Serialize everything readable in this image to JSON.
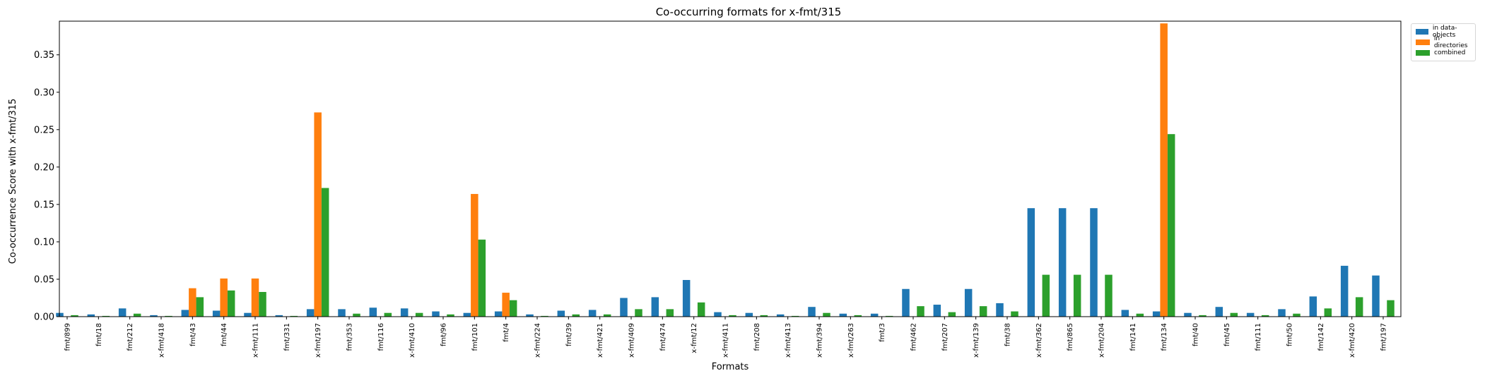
{
  "chart_data": {
    "type": "bar",
    "title": "Co-occurring formats for x-fmt/315",
    "xlabel": "Formats",
    "ylabel": "Co-occurrence Score with x-fmt/315",
    "ylim": [
      0,
      0.395
    ],
    "yticks": [
      0.0,
      0.05,
      0.1,
      0.15,
      0.2,
      0.25,
      0.3,
      0.35
    ],
    "ytick_labels": [
      "0.00",
      "0.05",
      "0.10",
      "0.15",
      "0.20",
      "0.25",
      "0.30",
      "0.35"
    ],
    "legend_position": "outside top-right",
    "grid": false,
    "categories": [
      "fmt/899",
      "fmt/18",
      "fmt/212",
      "x-fmt/418",
      "fmt/43",
      "fmt/44",
      "x-fmt/111",
      "fmt/331",
      "x-fmt/197",
      "fmt/353",
      "fmt/116",
      "x-fmt/410",
      "fmt/96",
      "fmt/101",
      "fmt/4",
      "x-fmt/224",
      "fmt/39",
      "x-fmt/421",
      "x-fmt/409",
      "fmt/474",
      "x-fmt/12",
      "x-fmt/411",
      "fmt/208",
      "x-fmt/413",
      "x-fmt/394",
      "x-fmt/263",
      "fmt/3",
      "fmt/462",
      "fmt/207",
      "x-fmt/139",
      "fmt/38",
      "x-fmt/362",
      "fmt/865",
      "x-fmt/204",
      "fmt/141",
      "fmt/134",
      "fmt/40",
      "fmt/45",
      "fmt/111",
      "fmt/50",
      "fmt/142",
      "x-fmt/420",
      "fmt/197"
    ],
    "series": [
      {
        "name": "in data-objects",
        "color": "#1f77b4",
        "values": [
          0.005,
          0.003,
          0.011,
          0.002,
          0.009,
          0.008,
          0.005,
          0.002,
          0.01,
          0.01,
          0.012,
          0.011,
          0.007,
          0.005,
          0.007,
          0.003,
          0.008,
          0.009,
          0.025,
          0.026,
          0.049,
          0.006,
          0.005,
          0.003,
          0.013,
          0.004,
          0.004,
          0.037,
          0.016,
          0.037,
          0.018,
          0.145,
          0.145,
          0.145,
          0.009,
          0.007,
          0.005,
          0.013,
          0.005,
          0.01,
          0.027,
          0.068,
          0.055
        ]
      },
      {
        "name": "in directories",
        "color": "#ff7f0e",
        "values": [
          0,
          0,
          0,
          0,
          0.038,
          0.051,
          0.051,
          0,
          0.273,
          0,
          0,
          0,
          0,
          0.164,
          0.032,
          0,
          0,
          0,
          0,
          0,
          0,
          0,
          0,
          0,
          0,
          0,
          0,
          0,
          0,
          0,
          0,
          0,
          0,
          0,
          0,
          0.392,
          0,
          0,
          0,
          0,
          0,
          0,
          0
        ]
      },
      {
        "name": "combined",
        "color": "#2ca02c",
        "values": [
          0.002,
          0.001,
          0.004,
          0.001,
          0.026,
          0.035,
          0.033,
          0.001,
          0.172,
          0.004,
          0.005,
          0.005,
          0.003,
          0.103,
          0.022,
          0.001,
          0.003,
          0.003,
          0.01,
          0.01,
          0.019,
          0.002,
          0.002,
          0.001,
          0.005,
          0.002,
          0.001,
          0.014,
          0.006,
          0.014,
          0.007,
          0.056,
          0.056,
          0.056,
          0.004,
          0.244,
          0.002,
          0.005,
          0.002,
          0.004,
          0.011,
          0.026,
          0.022
        ]
      }
    ]
  }
}
